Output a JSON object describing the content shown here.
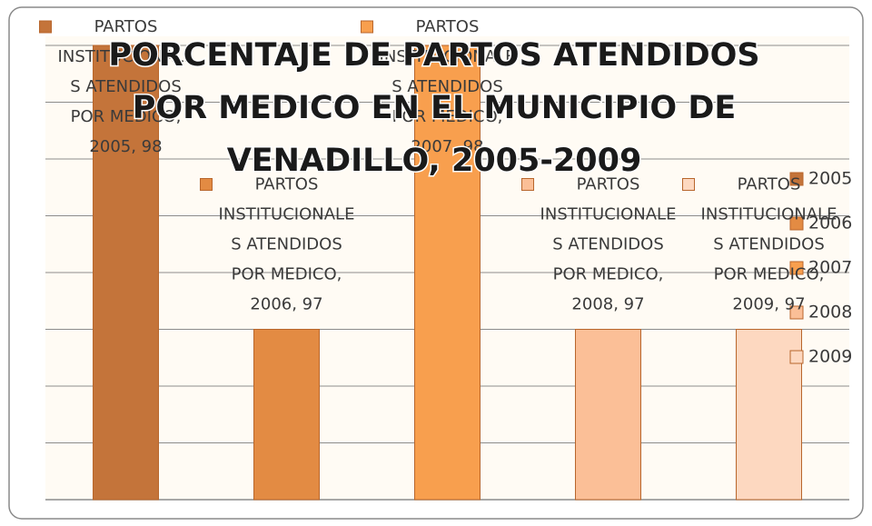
{
  "chart_data": {
    "type": "bar",
    "title": "PORCENTAJE DE PARTOS ATENDIDOS POR MEDICO EN EL MUNICIPIO DE VENADILLO, 2005-2009",
    "series_name": "PARTOS INSTITUCIONALES ATENDIDOS POR MEDICO",
    "categories": [
      "2005",
      "2006",
      "2007",
      "2008",
      "2009"
    ],
    "values": [
      98,
      97,
      98,
      97,
      97
    ],
    "value_labels": [
      "PARTOS INSTITUCIONALES ATENDIDOS POR MEDICO, 2005, 98",
      "PARTOS INSTITUCIONALES ATENDIDOS POR MEDICO, 2006, 97",
      "PARTOS INSTITUCIONALES ATENDIDOS POR MEDICO, 2007, 98",
      "PARTOS INSTITUCIONALES ATENDIDOS POR MEDICO, 2008, 97",
      "PARTOS INSTITUCIONALES ATENDIDOS POR MEDICO, 2009, 97"
    ],
    "colors": [
      "#c4743a",
      "#e38b43",
      "#f89f4e",
      "#fbbf97",
      "#fdd8c0"
    ],
    "ylim": [
      96.4,
      98
    ],
    "yticks": [
      96.4,
      96.6,
      96.8,
      97,
      97.2,
      97.4,
      97.6,
      97.8,
      98
    ],
    "grid": true,
    "legend": "right"
  }
}
